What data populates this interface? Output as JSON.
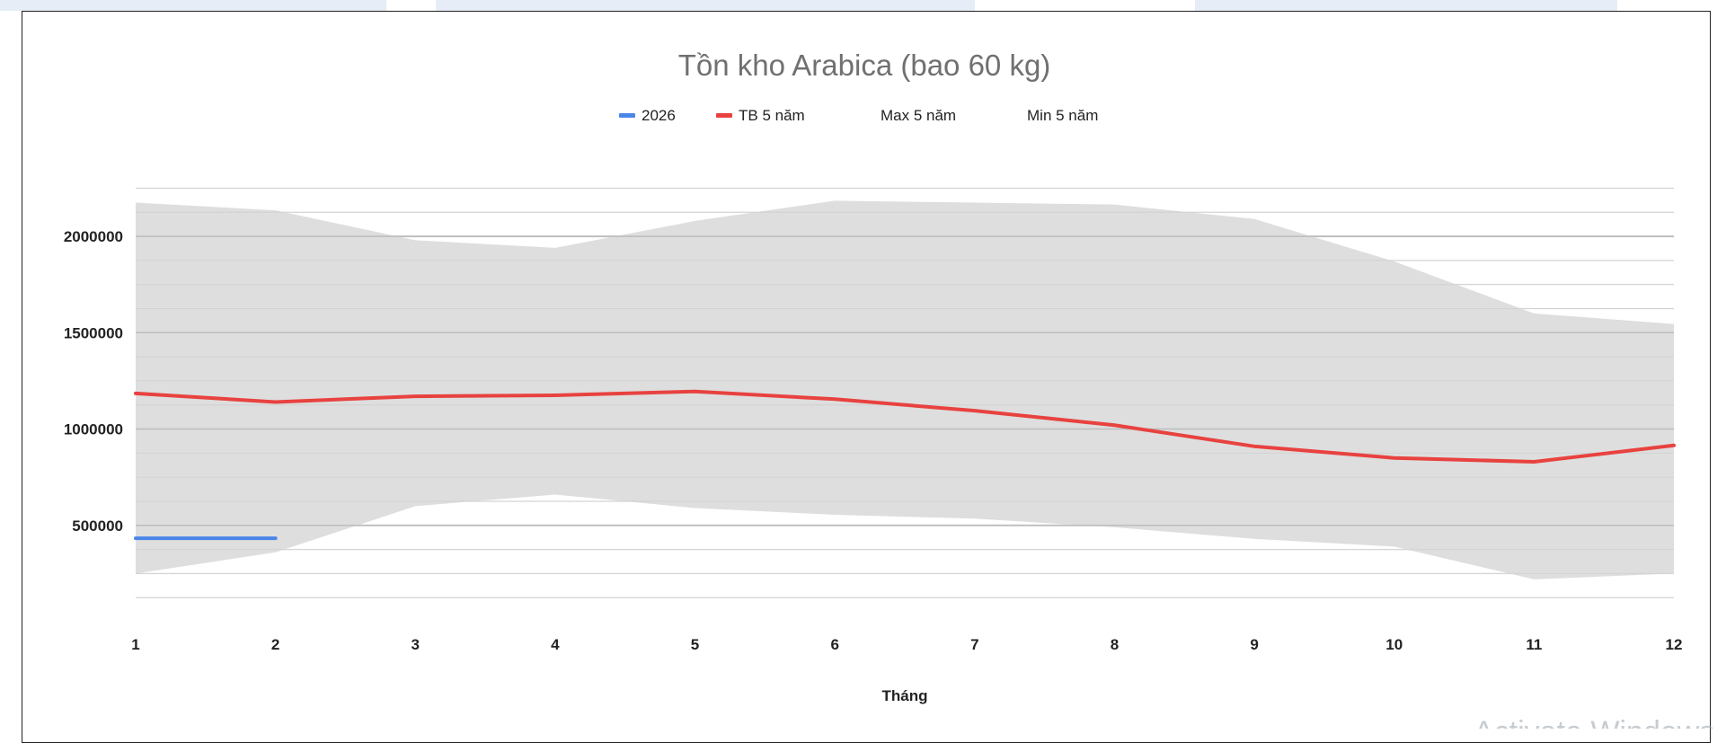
{
  "chart_data": {
    "type": "line",
    "title": "Tồn kho Arabica (bao 60 kg)",
    "xlabel": "Tháng",
    "ylabel": "",
    "x": [
      1,
      2,
      3,
      4,
      5,
      6,
      7,
      8,
      9,
      10,
      11,
      12
    ],
    "ylim": [
      0,
      2350000
    ],
    "yticks": [
      500000,
      1000000,
      1500000,
      2000000
    ],
    "grid": true,
    "legend_position": "top-center",
    "series": [
      {
        "name": "2026",
        "color": "#4a86e8",
        "type": "line",
        "values": [
          433000,
          433000,
          null,
          null,
          null,
          null,
          null,
          null,
          null,
          null,
          null,
          null
        ]
      },
      {
        "name": "TB 5 năm",
        "color": "#e8423f",
        "type": "line",
        "values": [
          1185000,
          1140000,
          1170000,
          1175000,
          1195000,
          1155000,
          1095000,
          1020000,
          910000,
          850000,
          830000,
          915000
        ]
      },
      {
        "name": "Max 5 năm",
        "color": "#dcdcdc",
        "type": "area",
        "values": [
          2175000,
          2135000,
          1980000,
          1940000,
          2080000,
          2185000,
          2175000,
          2165000,
          2090000,
          1870000,
          1600000,
          1545000
        ]
      },
      {
        "name": "Min 5 năm",
        "color": "#ffffff",
        "type": "area",
        "values": [
          250000,
          360000,
          600000,
          660000,
          590000,
          555000,
          535000,
          490000,
          430000,
          390000,
          220000,
          250000
        ]
      }
    ]
  },
  "watermark": "Activate Windows"
}
